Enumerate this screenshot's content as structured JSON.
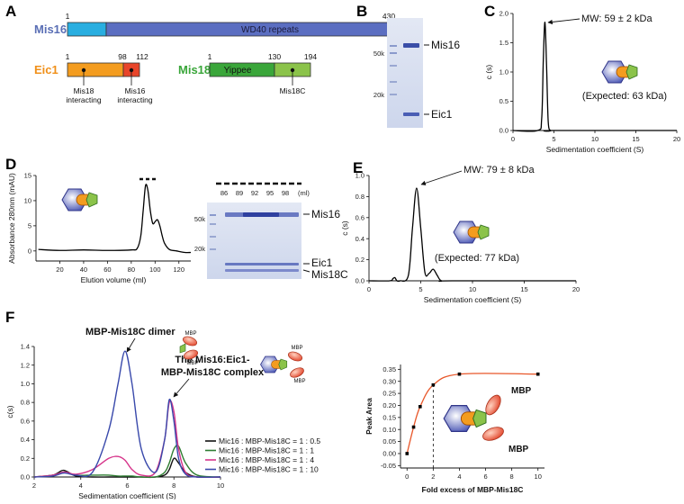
{
  "panel_labels": [
    "A",
    "B",
    "C",
    "D",
    "E",
    "F"
  ],
  "domains": {
    "mis16": {
      "name": "Mis16",
      "start": 1,
      "end": 430,
      "region": "WD40 repeats"
    },
    "eic1": {
      "name": "Eic1",
      "positions": [
        1,
        98,
        112
      ],
      "notes": [
        [
          "Mis18",
          "interacting"
        ],
        [
          "Mis16",
          "interacting"
        ]
      ]
    },
    "mis18": {
      "name": "Mis18",
      "positions": [
        1,
        130,
        194
      ],
      "region": "Yippee",
      "note": "Mis18C"
    }
  },
  "gels": {
    "b": {
      "markers": [
        "50k",
        "20k"
      ],
      "bands": [
        "Mis16",
        "Eic1"
      ]
    },
    "d": {
      "fractions": [
        86,
        89,
        92,
        95,
        98
      ],
      "unit": "(ml)",
      "markers": [
        "50k",
        "20k"
      ],
      "bands": [
        "Mis16",
        "Eic1",
        "Mis18C"
      ]
    }
  },
  "cartoon_labels": [
    "MBP",
    "MBP",
    "MBP",
    "MBP",
    "MBP",
    "MBP"
  ],
  "chart_data": [
    {
      "type": "line",
      "x_label": "Sedimentation coefficient (S)",
      "y_label": "c (s)",
      "annotations": [
        "MW: 59 ± 2 kDa",
        "(Expected: 63 kDa)"
      ],
      "color": "#000000",
      "x": [
        0,
        3.0,
        3.5,
        3.7,
        3.9,
        4.1,
        4.3,
        4.6,
        5,
        20
      ],
      "values": [
        0,
        0,
        0.2,
        1.2,
        1.85,
        1.1,
        0.15,
        0,
        0,
        0
      ],
      "xlim": [
        0,
        20
      ],
      "xticks": [
        0,
        5,
        10,
        15,
        20
      ],
      "ylim": [
        0,
        2.0
      ],
      "yticks": [
        {
          "value": 0,
          "label": "0.0"
        },
        0.5,
        {
          "value": 1,
          "label": "1.0"
        },
        1.5,
        {
          "value": 2,
          "label": "2.0"
        }
      ]
    },
    {
      "type": "line",
      "x_label": "Elution volume (ml)",
      "y_label": "Absorbance 280nm (mAU)",
      "color": "#000000",
      "x": [
        2,
        20,
        40,
        60,
        80,
        85,
        88,
        90,
        92,
        94,
        96,
        98,
        100,
        102,
        104,
        106,
        108,
        112,
        118,
        125,
        130
      ],
      "values": [
        0.3,
        0.1,
        0.2,
        0.1,
        0.2,
        0.5,
        3,
        8,
        13,
        12,
        8,
        5.5,
        5.8,
        6.2,
        5,
        3,
        1.5,
        0.3,
        0,
        -0.3,
        -0.3
      ],
      "xlim": [
        0,
        130
      ],
      "xticks": [
        20,
        40,
        60,
        80,
        100,
        120
      ],
      "ylim": [
        -2,
        15
      ],
      "yticks": [
        0,
        5,
        10,
        15
      ]
    },
    {
      "type": "line",
      "x_label": "Sedimentation coefficient (S)",
      "y_label": "c (s)",
      "annotations": [
        "MW: 79 ± 8 kDa",
        "(Expected: 77 kDa)"
      ],
      "color": "#000000",
      "x": [
        0,
        2,
        2.3,
        2.5,
        2.7,
        3,
        3.8,
        4.2,
        4.6,
        5.0,
        5.4,
        5.8,
        6.2,
        6.6,
        7,
        8,
        20
      ],
      "values": [
        0,
        0,
        0.02,
        0.03,
        0,
        0,
        0.05,
        0.5,
        0.88,
        0.5,
        0.08,
        0.07,
        0.11,
        0.05,
        0,
        0,
        0
      ],
      "xlim": [
        0,
        20
      ],
      "xticks": [
        0,
        5,
        10,
        15,
        20
      ],
      "ylim": [
        0,
        1.0
      ],
      "yticks": [
        {
          "value": 0,
          "label": "0.0"
        },
        0.2,
        0.4,
        0.6,
        0.8,
        {
          "value": 1,
          "label": "1.0"
        }
      ]
    },
    {
      "type": "line",
      "x_label": "Sedimentation coefficient (S)",
      "y_label": "c(s)",
      "annotations": [
        "MBP-Mis18C dimer",
        "The Mis16:Eic1-",
        "MBP-Mis18C complex"
      ],
      "x": [
        2,
        2.8,
        3.2,
        3.4,
        3.8,
        4.5,
        5.2,
        5.6,
        5.9,
        6.2,
        6.6,
        7.2,
        7.6,
        7.8,
        8.0,
        8.2,
        8.5,
        9,
        10
      ],
      "series": [
        {
          "name": "Mic16 : MBP-Mis18C = 1 : 0.5",
          "color": "#111111",
          "values": [
            0,
            0.02,
            0.07,
            0.06,
            0.01,
            0,
            0,
            0,
            0,
            0,
            0,
            0,
            0.02,
            0.08,
            0.2,
            0.15,
            0.05,
            0,
            0
          ]
        },
        {
          "name": "Mic16 : MBP-Mis18C = 1 : 1",
          "color": "#2e7d32",
          "values": [
            0,
            0.02,
            0.05,
            0.05,
            0.02,
            0.02,
            0.02,
            0.01,
            0.01,
            0.01,
            0,
            0,
            0.05,
            0.15,
            0.3,
            0.33,
            0.15,
            0.02,
            0
          ]
        },
        {
          "name": "Mic16 : MBP-Mis18C = 1 : 4",
          "color": "#d6338a",
          "values": [
            0,
            0.02,
            0.05,
            0.05,
            0.03,
            0.08,
            0.2,
            0.22,
            0.18,
            0.08,
            0.02,
            0.05,
            0.4,
            0.8,
            0.7,
            0.3,
            0.05,
            0,
            0
          ]
        },
        {
          "name": "Mic16 : MBP-Mis18C = 1 : 10",
          "color": "#3949ab",
          "values": [
            0,
            0.01,
            0.04,
            0.04,
            0.02,
            0.05,
            0.5,
            1.0,
            1.35,
            1.0,
            0.3,
            0.05,
            0.4,
            0.83,
            0.6,
            0.2,
            0.03,
            0,
            0
          ]
        }
      ],
      "xlim": [
        2,
        10
      ],
      "xticks": [
        2,
        4,
        6,
        8,
        10
      ],
      "ylim": [
        0,
        1.4
      ],
      "yticks": [
        {
          "value": 0,
          "label": "0.0"
        },
        0.2,
        0.4,
        0.6,
        0.8,
        {
          "value": 1,
          "label": "1.0"
        },
        1.2,
        1.4
      ]
    },
    {
      "type": "line",
      "markers": true,
      "x_label": "Fold excess of MBP-Mis18C",
      "y_label": "Peak Area",
      "color": "#e8572a",
      "marker_color": "#000000",
      "x": [
        0,
        0.5,
        1,
        2,
        4,
        10
      ],
      "values": [
        0,
        0.11,
        0.195,
        0.285,
        0.33,
        0.33
      ],
      "reference_x": 2,
      "xlim": [
        -0.5,
        10.5
      ],
      "xticks": [
        0,
        2,
        4,
        6,
        8,
        10
      ],
      "ylim": [
        -0.06,
        0.37
      ],
      "yticks": [
        -0.05,
        {
          "value": 0,
          "label": "0.00"
        },
        0.05,
        {
          "value": 0.1,
          "label": "0.10"
        },
        0.15,
        {
          "value": 0.2,
          "label": "0.20"
        },
        0.25,
        {
          "value": 0.3,
          "label": "0.30"
        },
        0.35
      ]
    }
  ]
}
